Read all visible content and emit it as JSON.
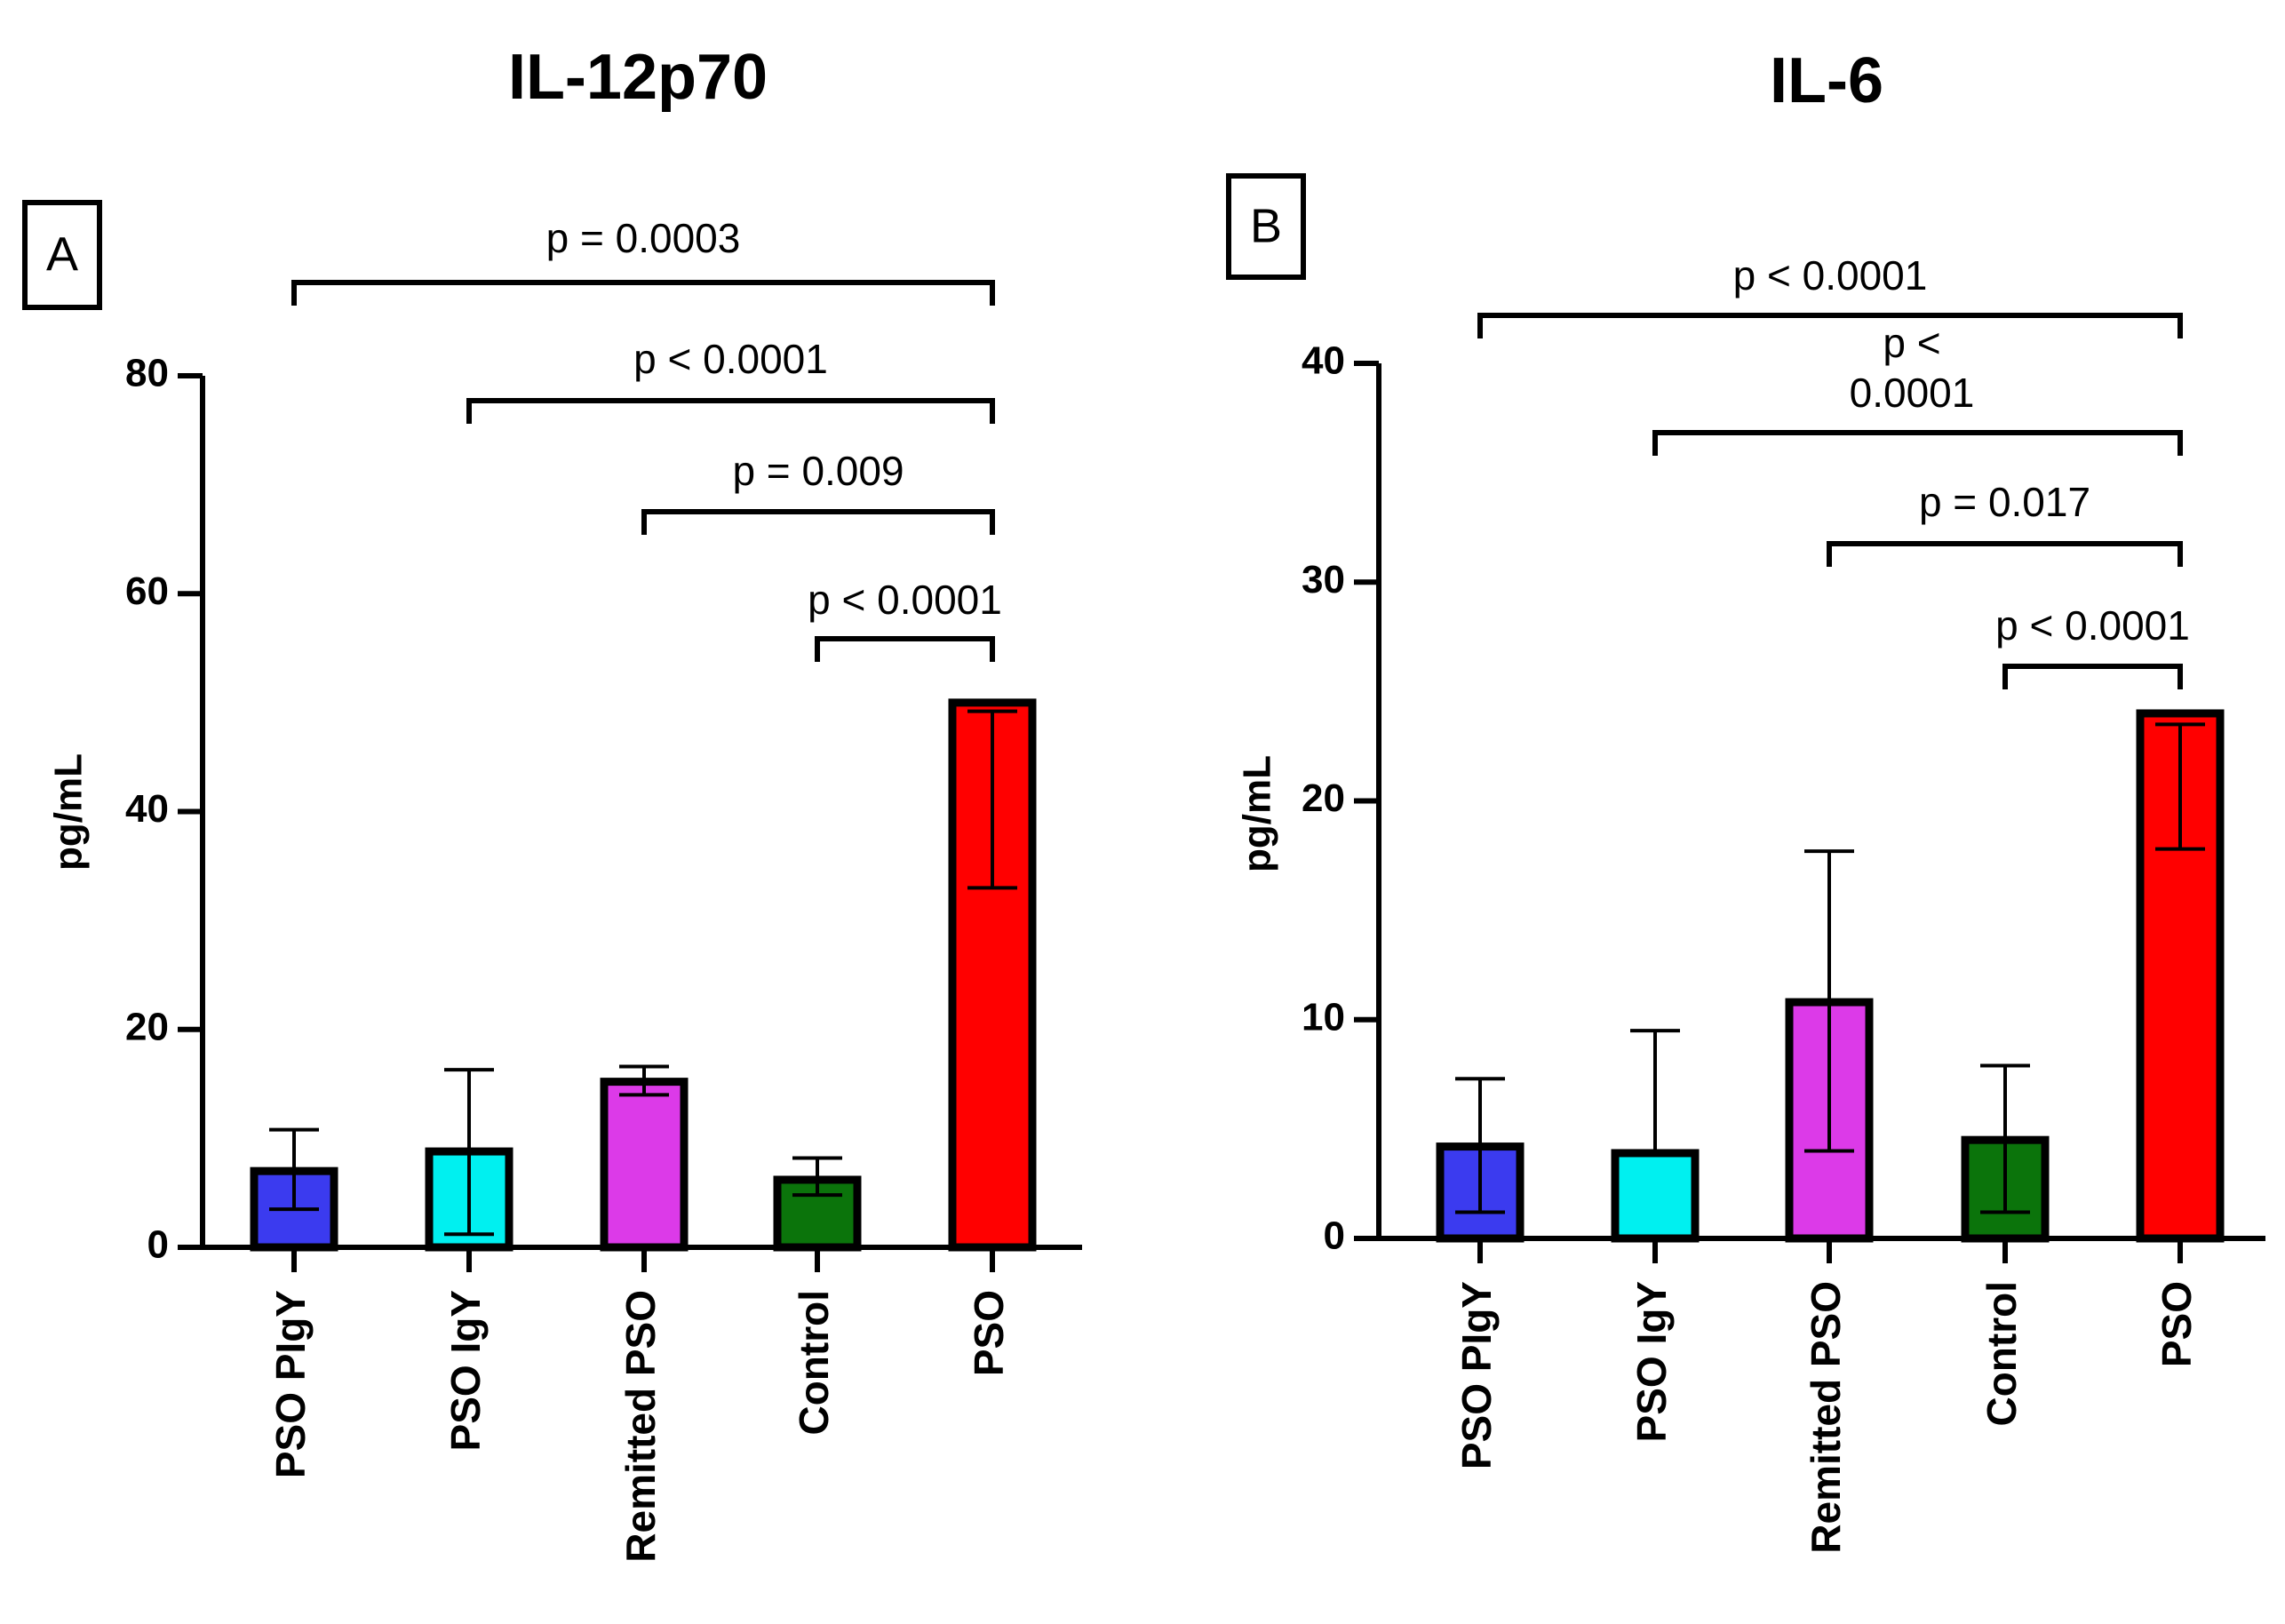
{
  "chart_data": [
    {
      "type": "bar",
      "panel": "A",
      "title": "IL-12p70",
      "xlabel": "",
      "ylabel": "pg/mL",
      "ylim": [
        0,
        80
      ],
      "yticks": [
        "0",
        "20",
        "40",
        "60",
        "80"
      ],
      "categories": [
        "PSO PIgY",
        "PSO IgY",
        "Remitted PSO",
        "Control",
        "PSO"
      ],
      "values": [
        7,
        8.8,
        15.2,
        6.2,
        50
      ],
      "error_low": [
        3.5,
        1.2,
        14,
        4.8,
        33
      ],
      "error_high": [
        10.8,
        16.3,
        16.6,
        8.2,
        49.2
      ],
      "colors": [
        "#3b3bef",
        "#00f0f0",
        "#dc3ae8",
        "#0b740b",
        "#ff0000"
      ],
      "comparisons": [
        {
          "from": "PSO PIgY",
          "to": "PSO",
          "label": "p = 0.0003"
        },
        {
          "from": "PSO IgY",
          "to": "PSO",
          "label": "p < 0.0001"
        },
        {
          "from": "Remitted PSO",
          "to": "PSO",
          "label": "p = 0.009"
        },
        {
          "from": "Control",
          "to": "PSO",
          "label": "p < 0.0001"
        }
      ]
    },
    {
      "type": "bar",
      "panel": "B",
      "title": "IL-6",
      "xlabel": "",
      "ylabel": "pg/mL",
      "ylim": [
        0,
        40
      ],
      "yticks": [
        "0",
        "10",
        "20",
        "30",
        "40"
      ],
      "categories": [
        "PSO PIgY",
        "PSO IgY",
        "Remitted PSO",
        "Control",
        "PSO"
      ],
      "values": [
        4.2,
        3.9,
        10.8,
        4.5,
        24
      ],
      "error_low": [
        1.2,
        3.9,
        4,
        1.2,
        17.8
      ],
      "error_high": [
        7.3,
        9.5,
        17.7,
        7.9,
        23.5
      ],
      "colors": [
        "#3b3bef",
        "#00f0f0",
        "#dc3ae8",
        "#0b740b",
        "#ff0000"
      ],
      "comparisons": [
        {
          "from": "PSO PIgY",
          "to": "PSO",
          "label": "p < 0.0001"
        },
        {
          "from": "PSO IgY",
          "to": "PSO",
          "label": "p <\n0.0001"
        },
        {
          "from": "Remitted PSO",
          "to": "PSO",
          "label": "p = 0.017"
        },
        {
          "from": "Control",
          "to": "PSO",
          "label": "p < 0.0001"
        }
      ]
    }
  ]
}
